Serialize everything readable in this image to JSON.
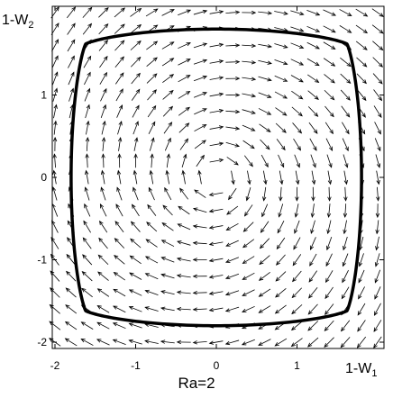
{
  "chart_data": {
    "type": "vector field phase portrait",
    "xlabel": {
      "base": "1-W",
      "sub": "1"
    },
    "ylabel": {
      "base": "1-W",
      "sub": "2"
    },
    "caption": "Ra=2",
    "xlim": [
      -2.2,
      2.2
    ],
    "ylim": [
      -2.05,
      2.05
    ],
    "xticks": [
      {
        "value": -2,
        "label": "-2"
      },
      {
        "value": -1,
        "label": "-1"
      },
      {
        "value": 0,
        "label": "0"
      },
      {
        "value": 1,
        "label": "1"
      }
    ],
    "yticks": [
      {
        "value": -2,
        "label": "-2"
      },
      {
        "value": -1,
        "label": "-1"
      },
      {
        "value": 0,
        "label": "0"
      },
      {
        "value": 1,
        "label": "1"
      }
    ],
    "vector_field": {
      "grid_x": [
        -2.0,
        -1.8,
        -1.6,
        -1.4,
        -1.2,
        -1.0,
        -0.8,
        -0.6,
        -0.4,
        -0.2,
        0.0,
        0.2,
        0.4,
        0.6,
        0.8,
        1.0,
        1.2,
        1.4,
        1.6,
        1.8,
        2.0
      ],
      "grid_y": [
        -2.0,
        -1.8,
        -1.6,
        -1.4,
        -1.2,
        -1.0,
        -0.8,
        -0.6,
        -0.4,
        -0.2,
        0.0,
        0.2,
        0.4,
        0.6,
        0.8,
        1.0,
        1.2,
        1.4,
        1.6,
        1.8,
        2.0
      ],
      "rotation": "clockwise",
      "outward_factor": 0.18
    },
    "limit_cycle": {
      "shape": "rounded diamond",
      "radius": 1.8,
      "exponent": 1.18,
      "x_intercept": 1.8,
      "y_intercept": 1.8
    },
    "colors": {
      "arrows": "#000000",
      "cycle": "#000000",
      "axes": "#000000"
    }
  }
}
